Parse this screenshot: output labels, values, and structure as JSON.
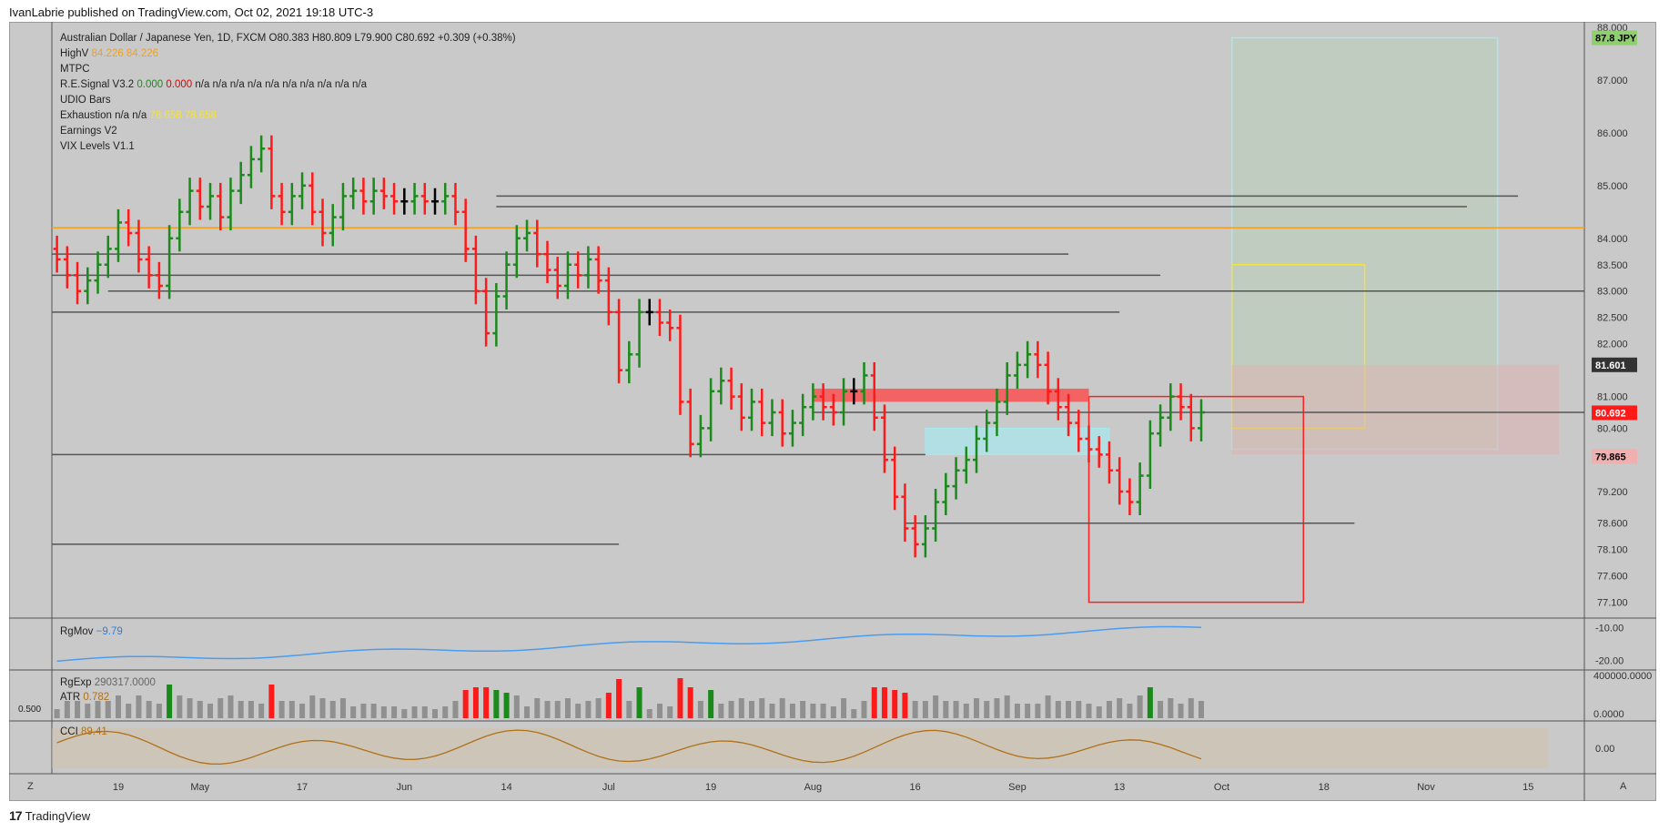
{
  "header": {
    "publisher": "IvanLabrie published on TradingView.com, Oct 02, 2021 19:18 UTC-3"
  },
  "legend": {
    "symbol": "Australian Dollar / Japanese Yen, 1D, FXCM",
    "ohlc": "O80.383  H80.809  L79.900  C80.692  +0.309 (+0.38%)",
    "highv_label": "HighV",
    "highv_values": "84.226  84.226",
    "mtpc": "MTPC",
    "resignal_label": "R.E.Signal V3.2",
    "resignal_green": "0.000",
    "resignal_red": "0.000",
    "resignal_na": "n/a  n/a  n/a  n/a  n/a  n/a  n/a  n/a  n/a  n/a",
    "udio": "UDIO Bars",
    "exhaustion_label": "Exhaustion  n/a  n/a",
    "exhaustion_values": "78.658  78.658",
    "earnings": "Earnings V2",
    "vix": "VIX Levels V1.1"
  },
  "panes": {
    "rgmov_label": "RgMov",
    "rgmov_value": "−9.79",
    "rgexp_label": "RgExp",
    "rgexp_value": "290317.0000",
    "atr_label": "ATR",
    "atr_value": "0.782",
    "atr_scale": "0.500",
    "cci_label": "CCI",
    "cci_value": "89.41"
  },
  "footer": {
    "logo": "17",
    "brand": "TradingView"
  },
  "corners": {
    "left": "Z",
    "right": "A"
  },
  "colors": {
    "bg": "#c9c9c9",
    "up": "#1a8a1a",
    "down": "#ff1a1a",
    "neutral": "#000000",
    "line_gray": "#555555",
    "orange": "#f0a020",
    "cyan": "#a8e8f0",
    "yellow": "#f5e23a",
    "rgmov_line": "#4a9cf0",
    "rgexp_line": "#a02020",
    "cci_line": "#b07018"
  },
  "chart_data": {
    "type": "ohlc",
    "symbol": "Australian Dollar / Japanese Yen",
    "timeframe": "1D",
    "price_ticks": [
      "88.000",
      "87.000",
      "86.000",
      "85.000",
      "84.000",
      "83.500",
      "83.000",
      "82.500",
      "82.000",
      "81.000",
      "80.400",
      "79.200",
      "78.600",
      "78.100",
      "77.600",
      "77.100"
    ],
    "price_ylim": [
      76.8,
      88.0
    ],
    "price_labels": [
      {
        "text": "87.8 JPY",
        "price": 87.8,
        "bg": "#8fcf6f",
        "fg": "#000000"
      },
      {
        "text": "81.601",
        "price": 81.601,
        "bg": "#333333",
        "fg": "#ffffff"
      },
      {
        "text": "80.692",
        "price": 80.692,
        "bg": "#ff1a1a",
        "fg": "#ffffff"
      },
      {
        "text": "79.865",
        "price": 79.865,
        "bg": "#f0b0b0",
        "fg": "#000000"
      }
    ],
    "x_labels": [
      "19",
      "May",
      "17",
      "Jun",
      "14",
      "Jul",
      "19",
      "Aug",
      "16",
      "Sep",
      "13",
      "Oct",
      "18",
      "Nov",
      "15"
    ],
    "x_label_bar_index": [
      6,
      14,
      24,
      34,
      44,
      54,
      64,
      74,
      84,
      94,
      104,
      114,
      124,
      134,
      144
    ],
    "bars_close": [
      83.6,
      83.3,
      83.0,
      83.2,
      83.5,
      83.8,
      84.3,
      84.1,
      83.6,
      83.3,
      83.1,
      84.0,
      84.5,
      84.9,
      84.6,
      84.8,
      84.4,
      84.9,
      85.2,
      85.5,
      85.7,
      84.8,
      84.5,
      84.8,
      85.0,
      84.5,
      84.1,
      84.4,
      84.8,
      84.9,
      84.7,
      84.9,
      84.8,
      84.7,
      84.7,
      84.8,
      84.7,
      84.7,
      84.8,
      84.5,
      83.8,
      83.0,
      82.2,
      82.9,
      83.5,
      84.0,
      84.1,
      83.7,
      83.4,
      83.1,
      83.5,
      83.3,
      83.6,
      83.2,
      82.6,
      81.5,
      81.8,
      82.6,
      82.6,
      82.4,
      82.3,
      80.9,
      80.1,
      80.4,
      81.1,
      81.3,
      81.0,
      80.6,
      80.9,
      80.5,
      80.7,
      80.3,
      80.5,
      80.8,
      81.0,
      80.8,
      80.7,
      81.1,
      81.1,
      81.4,
      80.6,
      79.8,
      79.1,
      78.5,
      78.2,
      78.5,
      79.0,
      79.3,
      79.6,
      79.8,
      80.2,
      80.5,
      80.9,
      81.4,
      81.6,
      81.8,
      81.6,
      81.1,
      80.8,
      80.5,
      80.2,
      80.0,
      79.9,
      79.6,
      79.2,
      79.0,
      79.5,
      80.3,
      80.6,
      81.0,
      80.8,
      80.4,
      80.7
    ],
    "horizontal_levels": [
      84.8,
      84.6,
      84.2,
      83.7,
      83.3,
      83.0,
      82.6,
      80.7,
      79.9,
      78.6,
      78.2
    ],
    "rgmov": {
      "ylim": [
        -22,
        -8
      ],
      "ticks": [
        "-10.00",
        "-20.00"
      ],
      "last": -9.79
    },
    "rgexp": {
      "ticks": [
        "400000.0000",
        "0.0000"
      ],
      "last": 290317.0
    },
    "atr": {
      "last": 0.782,
      "scale_label": "0.500"
    },
    "cci": {
      "ticks": [
        "0.00"
      ],
      "last": 89.41
    }
  }
}
